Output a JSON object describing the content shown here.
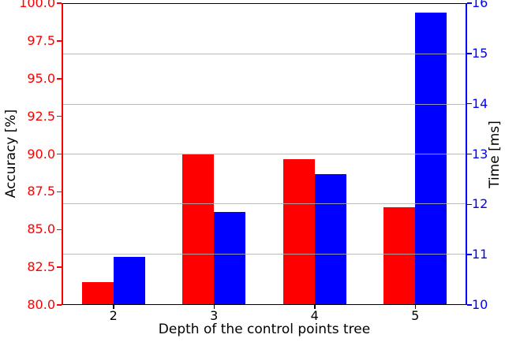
{
  "colors": {
    "accuracy": "#ff0000",
    "time": "#0000ff",
    "grid": "#b0b0b0",
    "spine_black": "#000000"
  },
  "axes": {
    "xlabel": "Depth of the control points tree",
    "ylabel_left": "Accuracy [%]",
    "ylabel_right": "Time [ms]",
    "yticks_left": [
      "100.0",
      "97.5",
      "95.0",
      "92.5",
      "90.0",
      "87.5",
      "85.0",
      "82.5",
      "80.0"
    ],
    "yticks_right": [
      "16",
      "15",
      "14",
      "13",
      "12",
      "11",
      "10"
    ],
    "xticks": [
      "2",
      "3",
      "4",
      "5"
    ]
  },
  "chart_data": {
    "type": "bar",
    "categories": [
      2,
      3,
      4,
      5
    ],
    "series": [
      {
        "name": "Accuracy",
        "axis": "left",
        "color": "#ff0000",
        "values": [
          81.5,
          90.0,
          89.7,
          86.5
        ]
      },
      {
        "name": "Time",
        "axis": "right",
        "color": "#0000ff",
        "values": [
          10.95,
          11.85,
          12.6,
          15.85
        ]
      }
    ],
    "title": "",
    "xlabel": "Depth of the control points tree",
    "ylabel_left": "Accuracy [%]",
    "ylabel_right": "Time [ms]",
    "ylim_left": [
      80,
      100
    ],
    "ylim_right": [
      10,
      16
    ],
    "ytick_step_left": 2.5,
    "ytick_step_right": 1,
    "grid": "horizontal gridlines at right-axis ticks, drawn over bars",
    "legend": "none",
    "bar_width_fraction": 0.078
  }
}
